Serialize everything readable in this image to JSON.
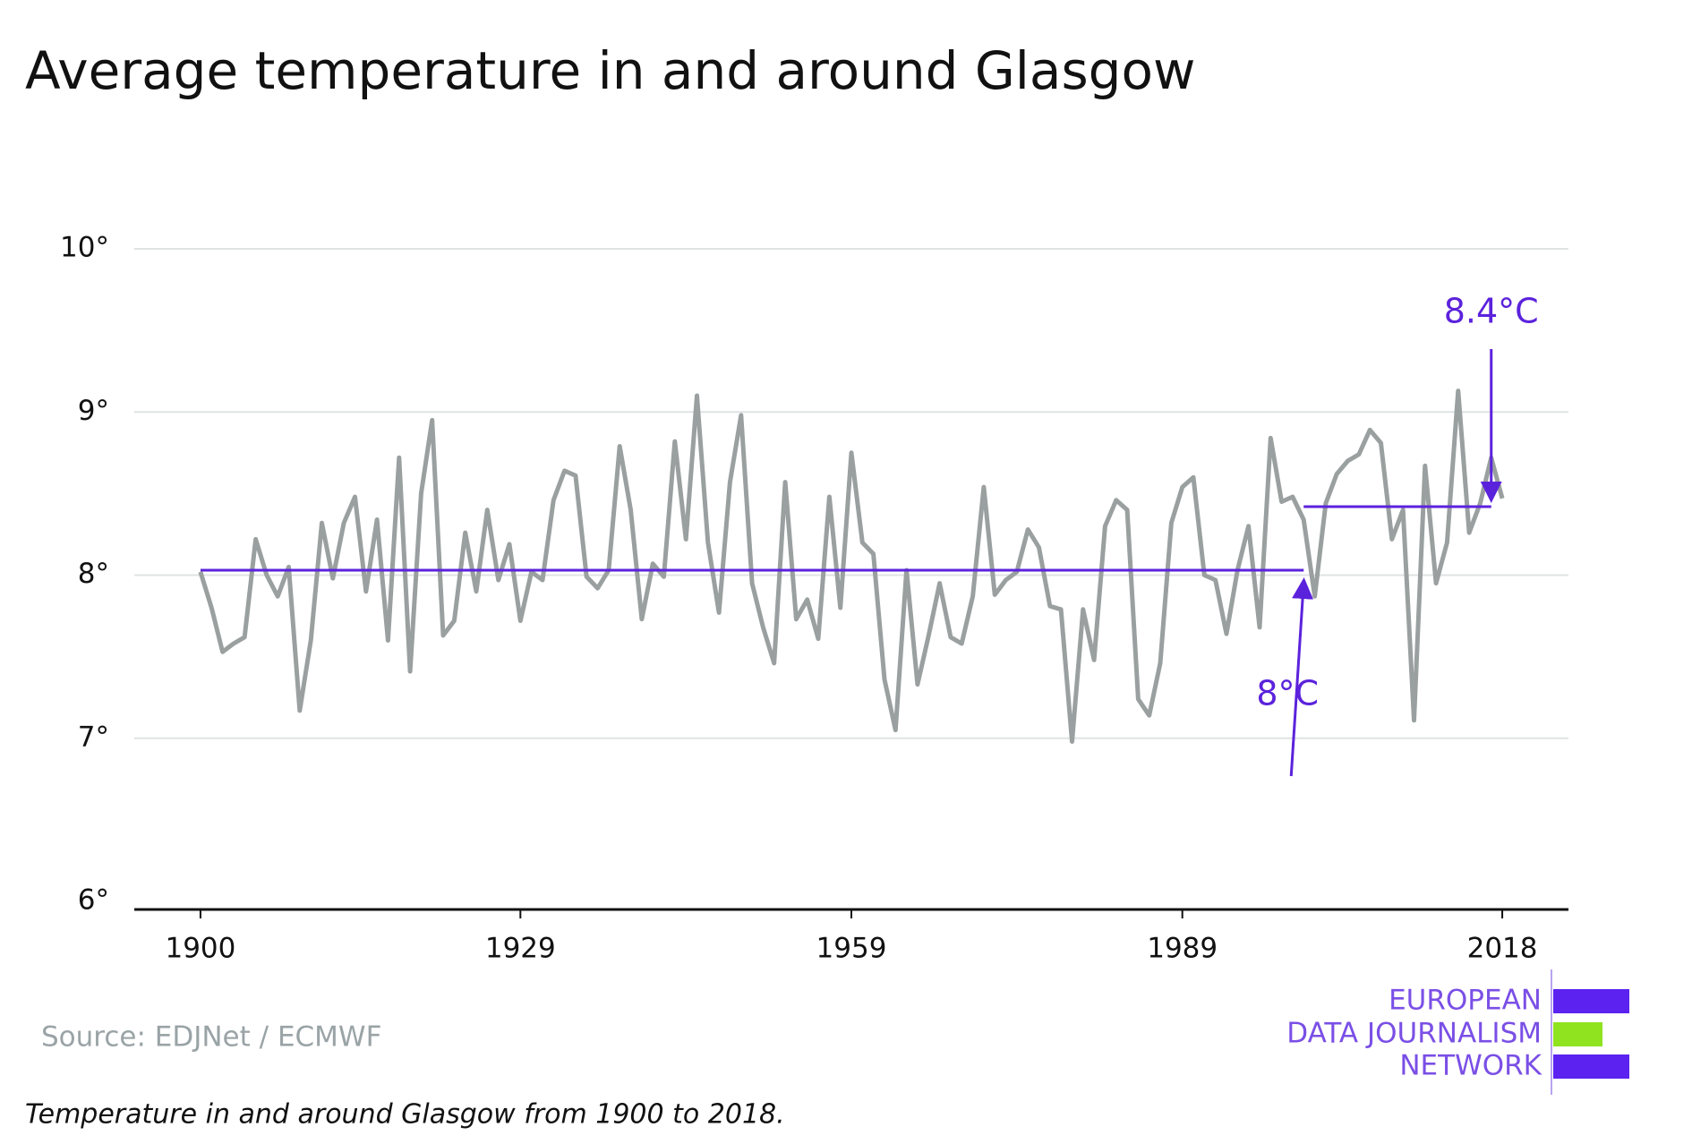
{
  "chart_data": {
    "type": "line",
    "title": "Average temperature in and around Glasgow",
    "source": "Source: EDJNet / ECMWF",
    "caption": "Temperature in and around Glasgow from 1900 to 2018.",
    "logo": [
      "EUROPEAN",
      "DATA JOURNALISM",
      "NETWORK"
    ],
    "x": [
      1900,
      1901,
      1902,
      1903,
      1904,
      1905,
      1906,
      1907,
      1908,
      1909,
      1910,
      1911,
      1912,
      1913,
      1914,
      1915,
      1916,
      1917,
      1918,
      1919,
      1920,
      1921,
      1922,
      1923,
      1924,
      1925,
      1926,
      1927,
      1928,
      1929,
      1930,
      1931,
      1932,
      1933,
      1934,
      1935,
      1936,
      1937,
      1938,
      1939,
      1940,
      1941,
      1942,
      1943,
      1944,
      1945,
      1946,
      1947,
      1948,
      1949,
      1950,
      1951,
      1952,
      1953,
      1954,
      1955,
      1956,
      1957,
      1958,
      1959,
      1960,
      1961,
      1962,
      1963,
      1964,
      1965,
      1966,
      1967,
      1968,
      1969,
      1970,
      1971,
      1972,
      1973,
      1974,
      1975,
      1976,
      1977,
      1978,
      1979,
      1980,
      1981,
      1982,
      1983,
      1984,
      1985,
      1986,
      1987,
      1988,
      1989,
      1990,
      1991,
      1992,
      1993,
      1994,
      1995,
      1996,
      1997,
      1998,
      1999,
      2000,
      2001,
      2002,
      2003,
      2004,
      2005,
      2006,
      2007,
      2008,
      2009,
      2010,
      2011,
      2012,
      2013,
      2014,
      2015,
      2016,
      2017,
      2018
    ],
    "values": [
      8.02,
      7.8,
      7.53,
      7.58,
      7.62,
      8.22,
      8.0,
      7.87,
      8.05,
      7.17,
      7.6,
      8.32,
      7.98,
      8.32,
      8.48,
      7.9,
      8.34,
      7.6,
      8.72,
      7.41,
      8.5,
      8.95,
      7.63,
      7.72,
      8.26,
      7.9,
      8.4,
      7.97,
      8.19,
      7.72,
      8.02,
      7.97,
      8.46,
      8.64,
      8.61,
      7.99,
      7.92,
      8.03,
      8.79,
      8.4,
      7.73,
      8.07,
      7.99,
      8.82,
      8.22,
      9.1,
      8.2,
      7.77,
      8.57,
      8.98,
      7.95,
      7.68,
      7.46,
      8.57,
      7.73,
      7.85,
      7.61,
      8.48,
      7.8,
      8.75,
      8.2,
      8.13,
      7.36,
      7.05,
      8.03,
      7.33,
      7.63,
      7.95,
      7.62,
      7.58,
      7.87,
      8.54,
      7.88,
      7.97,
      8.02,
      8.28,
      8.17,
      7.81,
      7.79,
      6.98,
      7.79,
      7.48,
      8.3,
      8.46,
      8.4,
      7.24,
      7.14,
      7.46,
      8.32,
      8.54,
      8.6,
      8.0,
      7.97,
      7.64,
      8.03,
      8.3,
      7.68,
      8.84,
      8.45,
      8.48,
      8.34,
      7.87,
      8.44,
      8.62,
      8.7,
      8.74,
      8.89,
      8.81,
      8.22,
      8.4,
      7.11,
      8.67,
      7.95,
      8.2,
      9.13,
      8.26,
      8.44,
      8.72,
      8.47
    ],
    "color": "#9aa09f",
    "xlim": [
      1894,
      2024
    ],
    "xticks": [
      1900,
      1929,
      1959,
      1989,
      2018
    ],
    "ylim": [
      6,
      10
    ],
    "yticks": [
      {
        "value": 6,
        "label": "6°"
      },
      {
        "value": 7,
        "label": "7°"
      },
      {
        "value": 8,
        "label": "8°"
      },
      {
        "value": 9,
        "label": "9°"
      },
      {
        "value": 10,
        "label": "10°"
      }
    ],
    "grid": true,
    "annotations": [
      {
        "text": "8°C",
        "value": 8.03,
        "x": [
          1900,
          2000
        ],
        "color": "#5b22dc"
      },
      {
        "text": "8.4°C",
        "value": 8.42,
        "x": [
          2000,
          2017
        ],
        "color": "#5b22dc"
      }
    ]
  }
}
